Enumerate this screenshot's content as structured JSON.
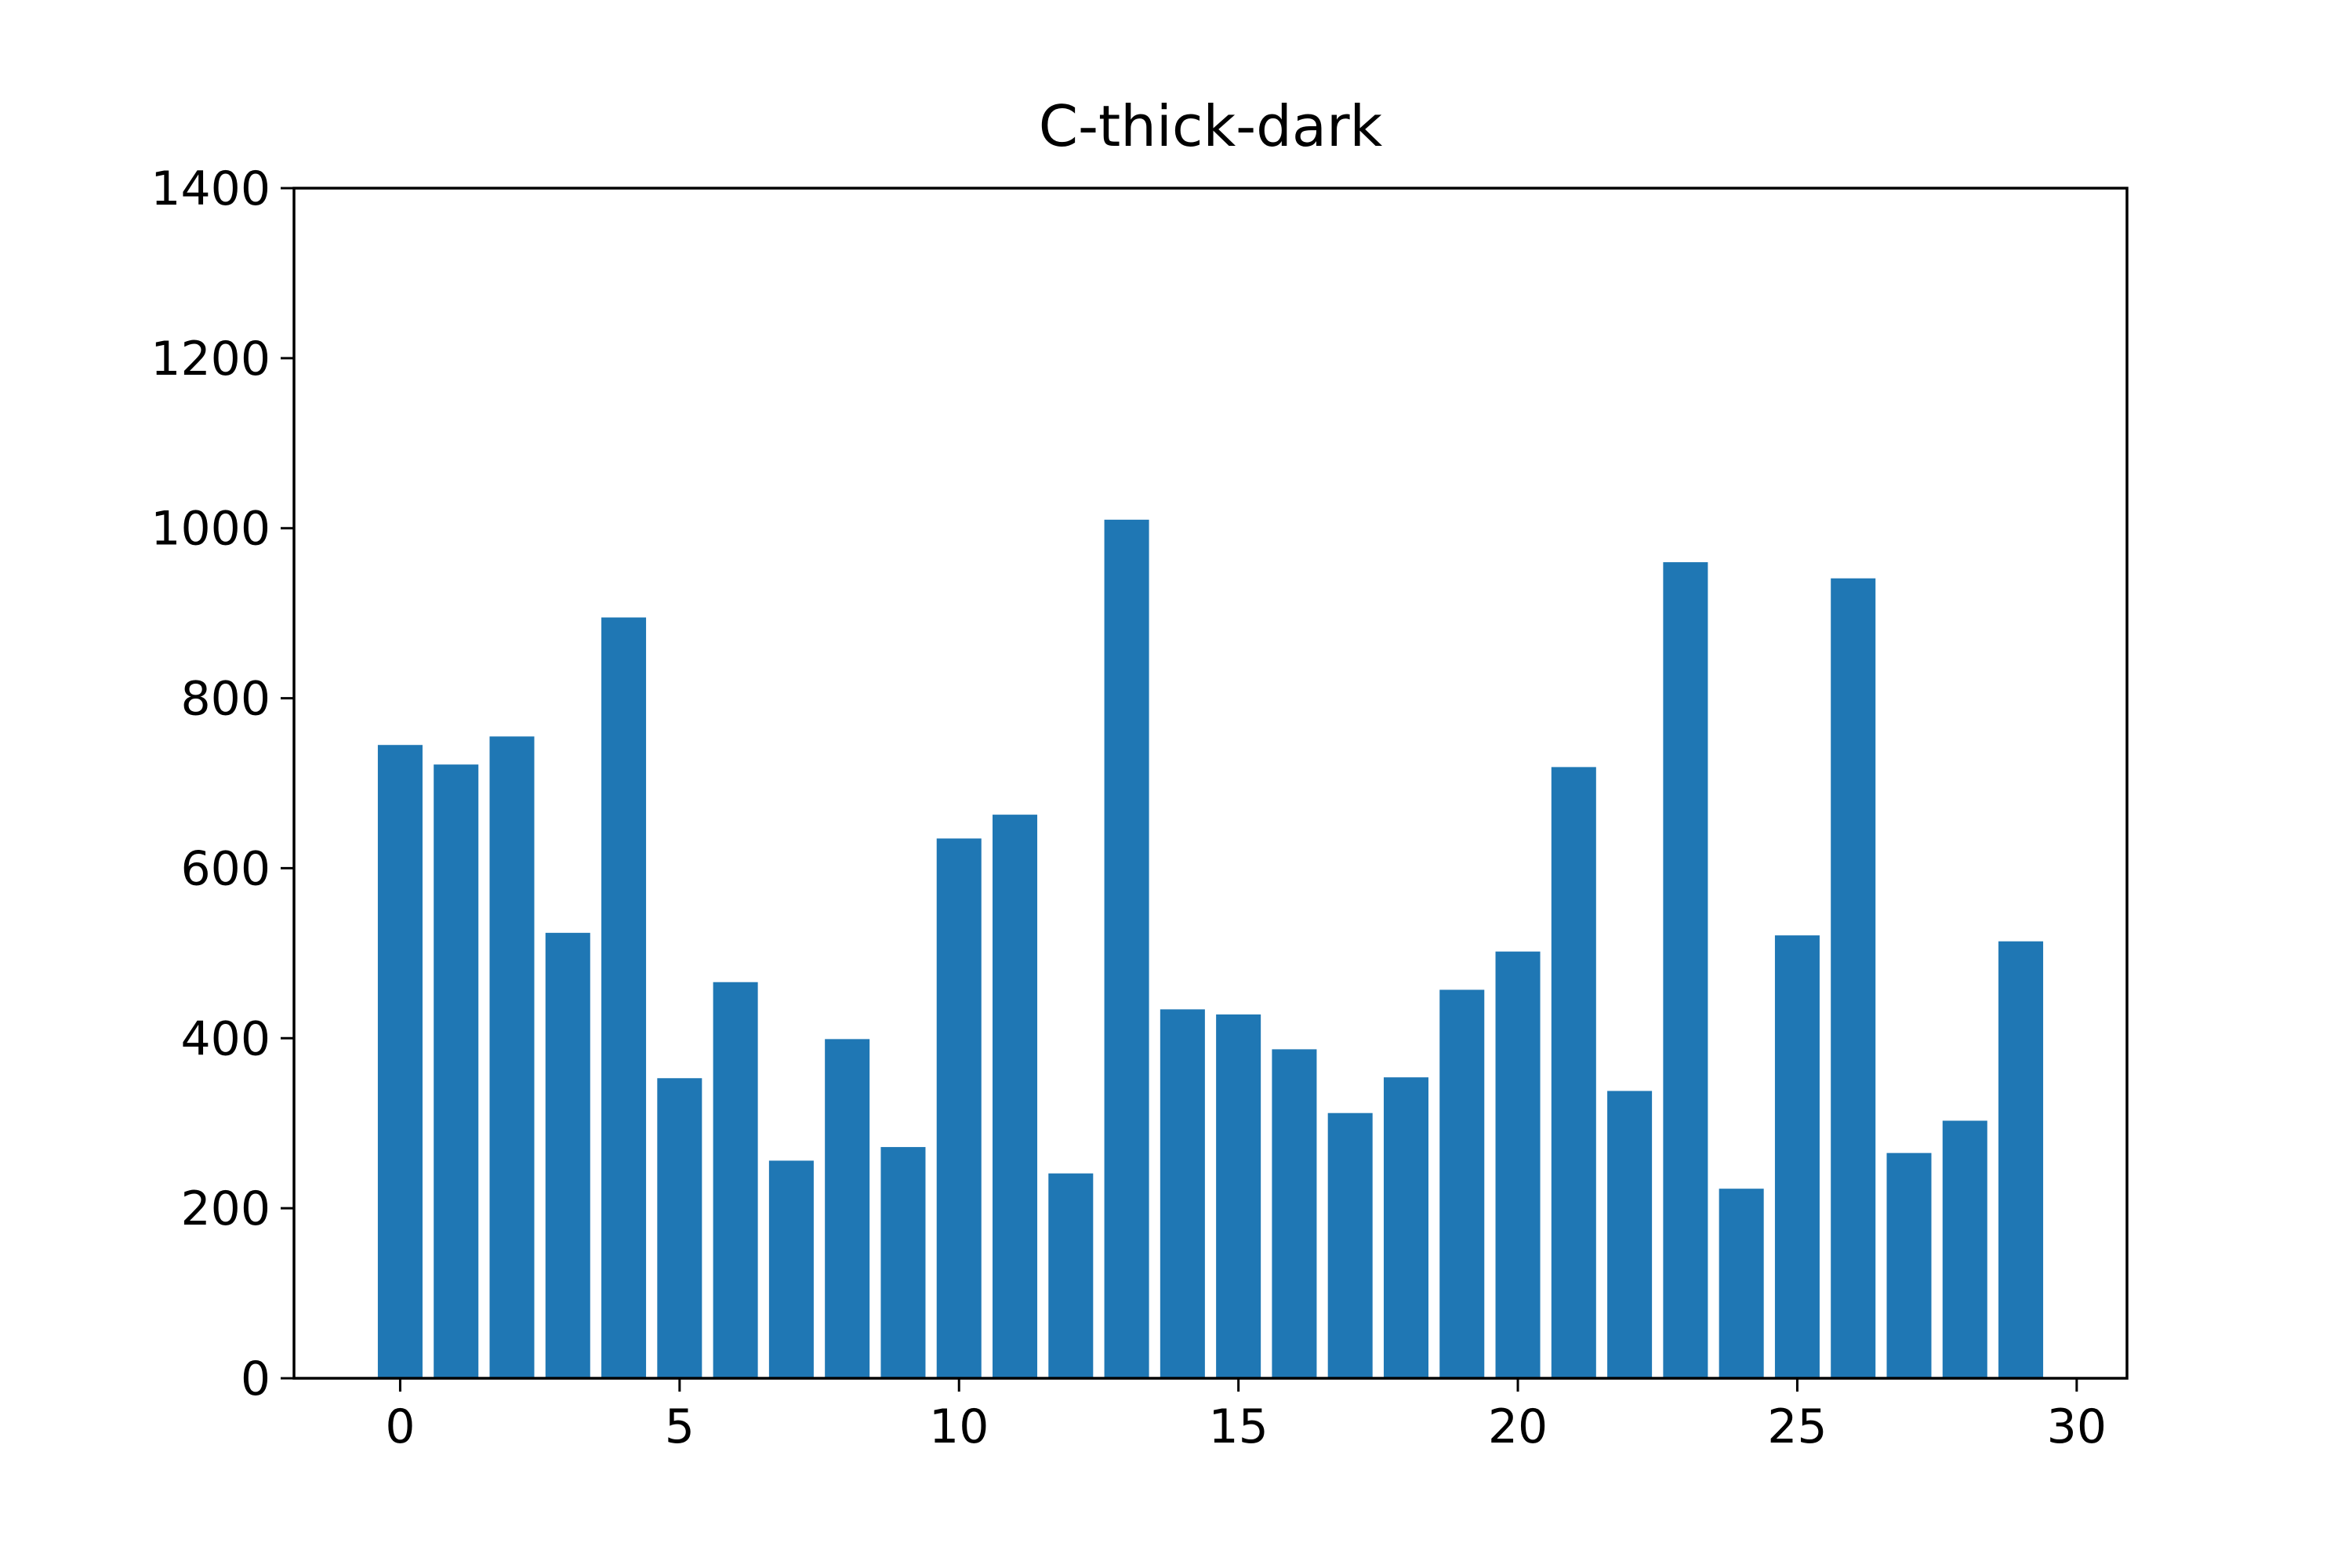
{
  "chart_data": {
    "type": "bar",
    "title": "C-thick-dark",
    "xlabel": "",
    "ylabel": "",
    "x": [
      0,
      1,
      2,
      3,
      4,
      5,
      6,
      7,
      8,
      9,
      10,
      11,
      12,
      13,
      14,
      15,
      16,
      17,
      18,
      19,
      20,
      21,
      22,
      23,
      24,
      25,
      26,
      27,
      28,
      29
    ],
    "values": [
      745,
      722,
      755,
      524,
      895,
      353,
      466,
      256,
      399,
      272,
      635,
      663,
      241,
      1010,
      434,
      428,
      387,
      312,
      354,
      457,
      502,
      719,
      338,
      960,
      223,
      521,
      941,
      265,
      303,
      514
    ],
    "xlim": [
      -1.9,
      30.9
    ],
    "ylim": [
      0,
      1400
    ],
    "xticks": [
      0,
      5,
      10,
      15,
      20,
      25,
      30
    ],
    "yticks": [
      0,
      200,
      400,
      600,
      800,
      1000,
      1200,
      1400
    ],
    "bar_color": "#1f77b4",
    "grid": false,
    "legend": "none"
  }
}
